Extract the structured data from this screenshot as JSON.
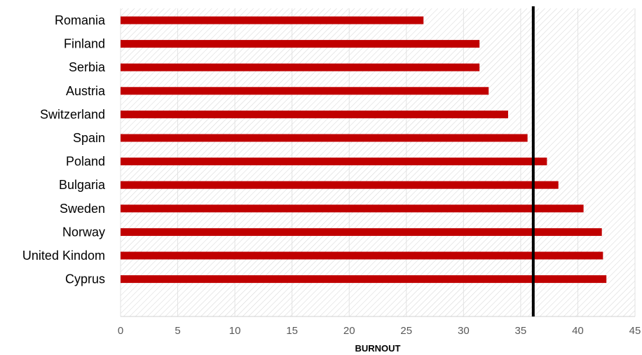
{
  "chart_data": {
    "type": "bar",
    "orientation": "horizontal",
    "title": "",
    "xlabel": "BURNOUT",
    "ylabel": "",
    "xlim": [
      0,
      45
    ],
    "x_ticks": [
      0,
      5,
      10,
      15,
      20,
      25,
      30,
      35,
      40,
      45
    ],
    "grid": false,
    "plot_background": "hatched",
    "categories": [
      "Romania",
      "Finland",
      "Serbia",
      "Austria",
      "Switzerland",
      "Spain",
      "Poland",
      "Bulgaria",
      "Sweden",
      "Norway",
      "United Kindom",
      "Cyprus"
    ],
    "values": [
      26.5,
      31.4,
      31.4,
      32.2,
      33.9,
      35.6,
      37.3,
      38.3,
      40.5,
      42.1,
      42.2,
      42.5
    ],
    "reference_line": {
      "value": 36.1,
      "color": "#000000"
    },
    "bar_color": "#c00000"
  }
}
